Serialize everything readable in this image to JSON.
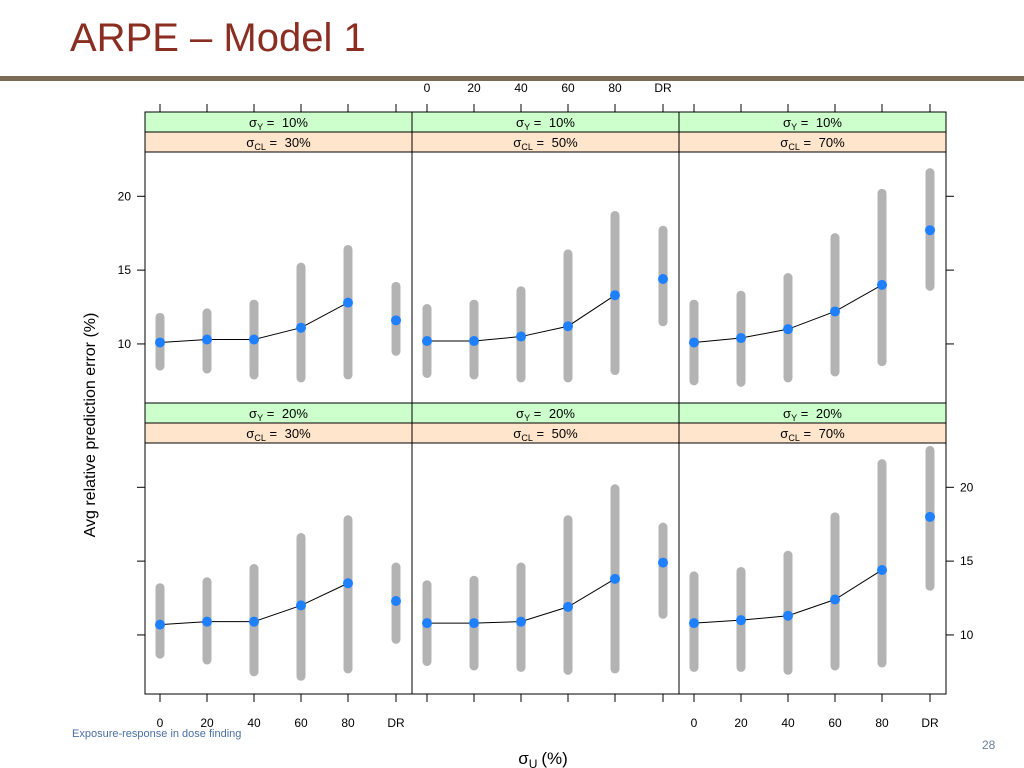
{
  "slide": {
    "title": "ARPE – Model 1",
    "footer": "Exposure-response in dose finding",
    "page_number": "28"
  },
  "chart_data": {
    "type": "lattice-interval",
    "ylabel": "Avg relative prediction error (%)",
    "xlabel_symbol": "σ",
    "xlabel_sub": "U",
    "xlabel_unit": "(%)",
    "x_categories": [
      "0",
      "20",
      "40",
      "60",
      "80",
      "DR"
    ],
    "ylim": [
      6,
      23
    ],
    "y_ticks": [
      10,
      15,
      20
    ],
    "strip_colors": {
      "sigma_y": "#ccffcc",
      "sigma_cl": "#ffe5cc"
    },
    "colors": {
      "interval": "#b3b3b3",
      "point": "#1e80ff",
      "line": "#000000"
    },
    "panels": [
      {
        "sigma_y": "10%",
        "sigma_cl": "30%",
        "mean": [
          10.1,
          10.3,
          10.3,
          11.1,
          12.8,
          11.6
        ],
        "lower": [
          8.5,
          8.3,
          7.9,
          7.7,
          7.9,
          9.5
        ],
        "upper": [
          11.8,
          12.1,
          12.7,
          15.2,
          16.4,
          13.9
        ]
      },
      {
        "sigma_y": "10%",
        "sigma_cl": "50%",
        "mean": [
          10.2,
          10.2,
          10.5,
          11.2,
          13.3,
          14.4
        ],
        "lower": [
          8.0,
          7.9,
          7.7,
          7.7,
          8.2,
          11.5
        ],
        "upper": [
          12.4,
          12.7,
          13.6,
          16.1,
          18.7,
          17.7
        ]
      },
      {
        "sigma_y": "10%",
        "sigma_cl": "70%",
        "mean": [
          10.1,
          10.4,
          11.0,
          12.2,
          14.0,
          17.7
        ],
        "lower": [
          7.5,
          7.4,
          7.7,
          8.1,
          8.8,
          13.9
        ],
        "upper": [
          12.7,
          13.3,
          14.5,
          17.2,
          20.2,
          21.6
        ]
      },
      {
        "sigma_y": "20%",
        "sigma_cl": "30%",
        "mean": [
          10.7,
          10.9,
          10.9,
          12.0,
          13.5,
          12.3
        ],
        "lower": [
          8.7,
          8.3,
          7.5,
          7.2,
          7.7,
          9.7
        ],
        "upper": [
          13.2,
          13.6,
          14.5,
          16.6,
          17.8,
          14.6
        ]
      },
      {
        "sigma_y": "20%",
        "sigma_cl": "50%",
        "mean": [
          10.8,
          10.8,
          10.9,
          11.9,
          13.8,
          14.9
        ],
        "lower": [
          8.2,
          7.9,
          7.8,
          7.6,
          7.7,
          11.4
        ],
        "upper": [
          13.4,
          13.7,
          14.6,
          17.8,
          19.9,
          17.3
        ]
      },
      {
        "sigma_y": "20%",
        "sigma_cl": "70%",
        "mean": [
          10.8,
          11.0,
          11.3,
          12.4,
          14.4,
          18.0
        ],
        "lower": [
          7.8,
          7.8,
          7.6,
          7.9,
          8.1,
          13.3
        ],
        "upper": [
          14.0,
          14.3,
          15.4,
          18.0,
          21.6,
          22.5
        ]
      }
    ]
  }
}
